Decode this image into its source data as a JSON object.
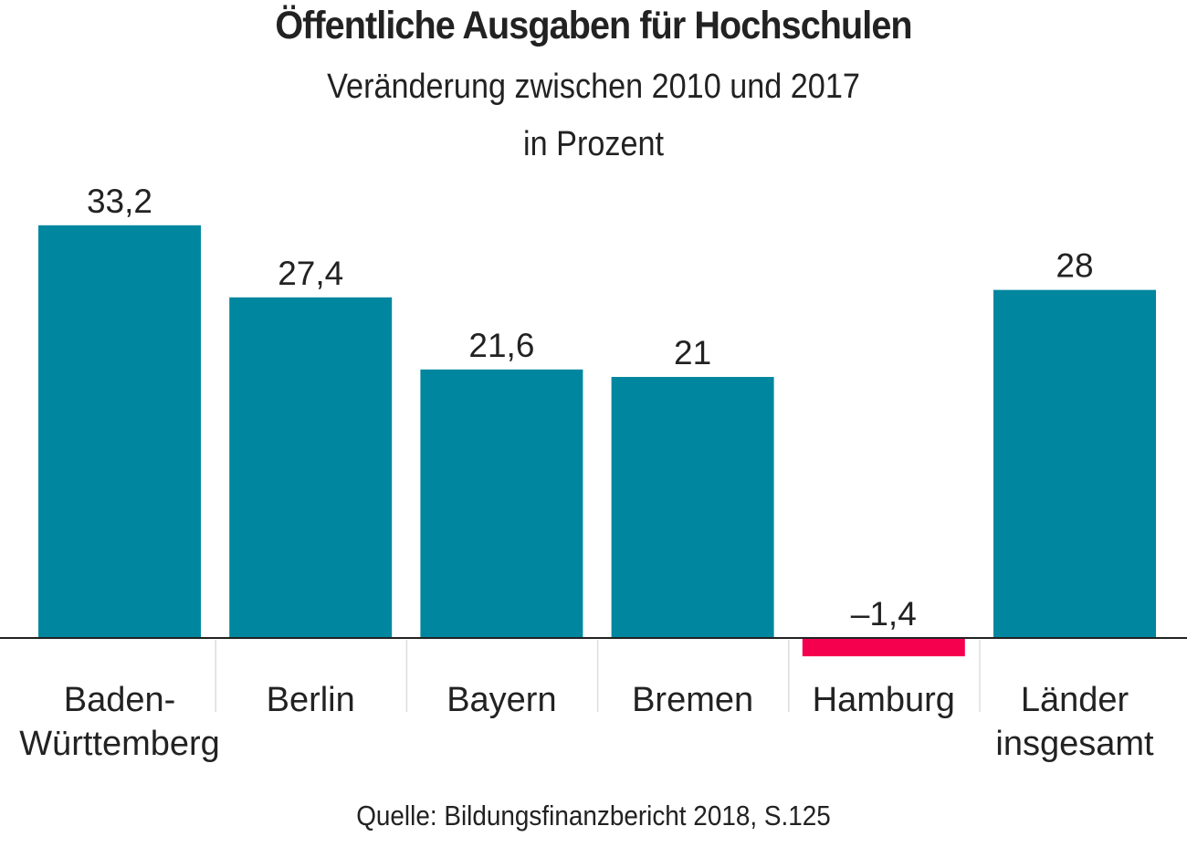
{
  "chart_data": {
    "type": "bar",
    "title": "Öffentliche Ausgaben für Hochschulen",
    "subtitle": [
      "Veränderung zwischen 2010 und 2017",
      "in Prozent"
    ],
    "categories": [
      [
        "Baden-",
        "Württemberg"
      ],
      [
        "Berlin"
      ],
      [
        "Bayern"
      ],
      [
        "Bremen"
      ],
      [
        "Hamburg"
      ],
      [
        "Länder",
        "insgesamt"
      ]
    ],
    "values": [
      33.2,
      27.4,
      21.6,
      21,
      -1.4,
      28
    ],
    "value_labels": [
      "33,2",
      "27,4",
      "21,6",
      "21",
      "–1,4",
      "28"
    ],
    "xlabel": "",
    "ylabel": "",
    "ylim": [
      -1.4,
      33.2
    ],
    "grid": false,
    "colors": {
      "positive": "#00879f",
      "negative": "#f5004f",
      "baseline": "#222222",
      "separator": "#dddddd"
    },
    "source": "Quelle: Bildungsfinanzbericht 2018, S.125"
  }
}
